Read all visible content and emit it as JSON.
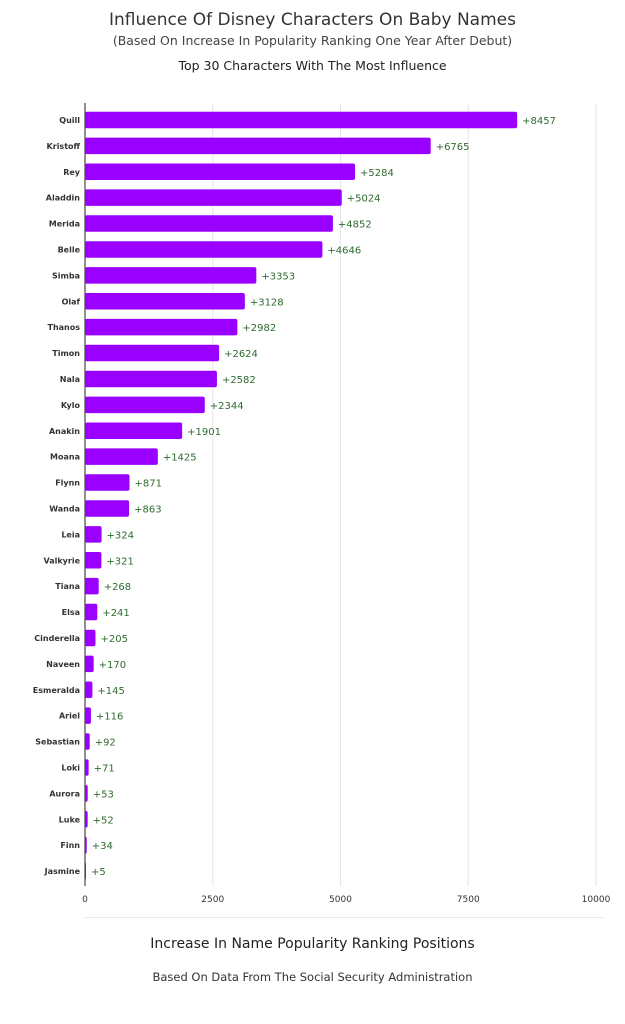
{
  "header": {
    "title": "Influence Of Disney Characters On Baby Names",
    "subtitle": "(Based On Increase In Popularity Ranking One Year After Debut)",
    "chart_heading": "Top 30 Characters With The Most Influence"
  },
  "footer": {
    "xlabel": "Increase In Name Popularity Ranking Positions",
    "note": "Based On Data From The Social Security Administration"
  },
  "chart_data": {
    "type": "bar",
    "orientation": "horizontal",
    "title": "Influence Of Disney Characters On Baby Names",
    "subtitle": "(Based On Increase In Popularity Ranking One Year After Debut)",
    "xlabel": "Increase In Name Popularity Ranking Positions",
    "ylabel": "",
    "xlim": [
      0,
      10000
    ],
    "xticks": [
      0,
      2500,
      5000,
      7500,
      10000
    ],
    "grid": true,
    "bar_color": "#9900ff",
    "label_color": "#2f6b2f",
    "categories": [
      "Quill",
      "Kristoff",
      "Rey",
      "Aladdin",
      "Merida",
      "Belle",
      "Simba",
      "Olaf",
      "Thanos",
      "Timon",
      "Nala",
      "Kylo",
      "Anakin",
      "Moana",
      "Flynn",
      "Wanda",
      "Leia",
      "Valkyrie",
      "Tiana",
      "Elsa",
      "Cinderella",
      "Naveen",
      "Esmeralda",
      "Ariel",
      "Sebastian",
      "Loki",
      "Aurora",
      "Luke",
      "Finn",
      "Jasmine"
    ],
    "values": [
      8457,
      6765,
      5284,
      5024,
      4852,
      4646,
      3353,
      3128,
      2982,
      2624,
      2582,
      2344,
      1901,
      1425,
      871,
      863,
      324,
      321,
      268,
      241,
      205,
      170,
      145,
      116,
      92,
      71,
      53,
      52,
      34,
      5
    ],
    "data_labels": [
      "+8457",
      "+6765",
      "+5284",
      "+5024",
      "+4852",
      "+4646",
      "+3353",
      "+3128",
      "+2982",
      "+2624",
      "+2582",
      "+2344",
      "+1901",
      "+1425",
      "+871",
      "+863",
      "+324",
      "+321",
      "+268",
      "+241",
      "+205",
      "+170",
      "+145",
      "+116",
      "+92",
      "+71",
      "+53",
      "+52",
      "+34",
      "+5"
    ]
  }
}
